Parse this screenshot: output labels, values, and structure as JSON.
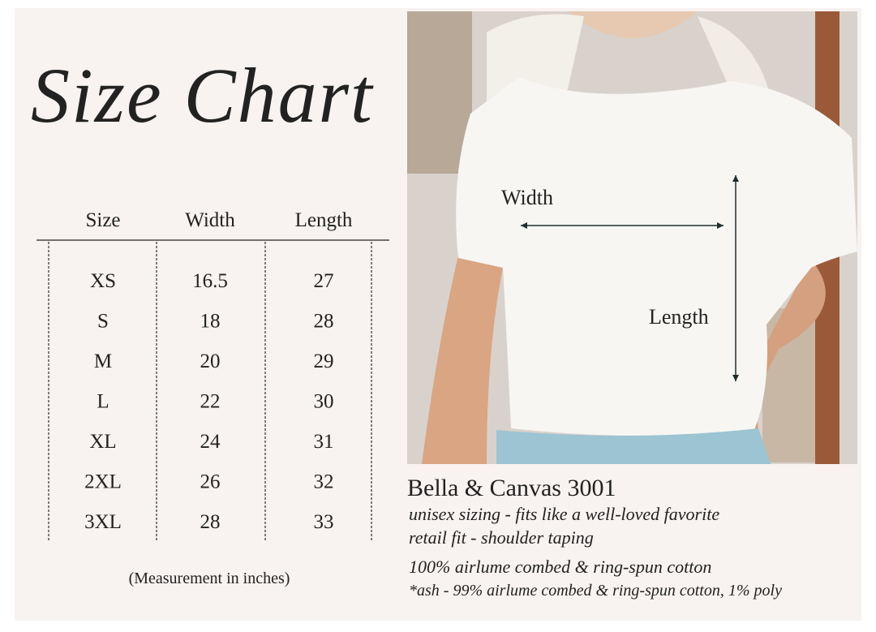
{
  "header": {
    "title": "Size Chart"
  },
  "table": {
    "columns": [
      "Size",
      "Width",
      "Length"
    ],
    "rows": [
      [
        "XS",
        "16.5",
        "27"
      ],
      [
        "S",
        "18",
        "28"
      ],
      [
        "M",
        "20",
        "29"
      ],
      [
        "L",
        "22",
        "30"
      ],
      [
        "XL",
        "24",
        "31"
      ],
      [
        "2XL",
        "26",
        "32"
      ],
      [
        "3XL",
        "28",
        "33"
      ]
    ],
    "note": "(Measurement in inches)"
  },
  "photo": {
    "width_label": "Width",
    "length_label": "Length"
  },
  "product": {
    "name": "Bella & Canvas 3001",
    "lines": [
      "unisex sizing - fits like a well-loved favorite",
      "retail fit - shoulder taping",
      "100% airlume combed & ring-spun cotton",
      "*ash - 99%  airlume combed & ring-spun cotton, 1% poly"
    ]
  }
}
